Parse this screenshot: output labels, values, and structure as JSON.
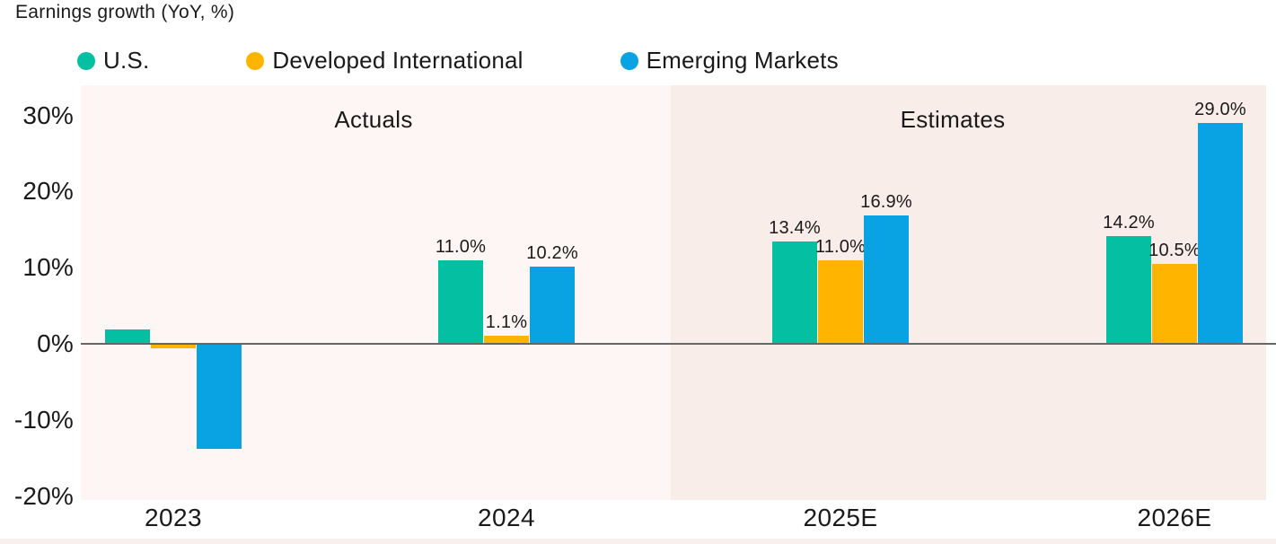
{
  "title": "Earnings growth (YoY, %)",
  "legend": {
    "items": [
      {
        "label": "U.S.",
        "color": "#05BFA2"
      },
      {
        "label": "Developed International",
        "color": "#FFB400"
      },
      {
        "label": "Emerging Markets",
        "color": "#09A2E3"
      }
    ]
  },
  "sections": [
    {
      "label": "Actuals",
      "bg": "#FDF6F4"
    },
    {
      "label": "Estimates",
      "bg": "#F9EDE9"
    }
  ],
  "chart_data": {
    "type": "bar",
    "title": "Earnings growth (YoY, %)",
    "categories": [
      "2023",
      "2024",
      "2025E",
      "2026E"
    ],
    "series": [
      {
        "name": "U.S.",
        "color": "#05BFA2",
        "values": [
          1.9,
          11.0,
          13.4,
          14.2
        ],
        "labels": [
          "",
          "11.0%",
          "13.4%",
          "14.2%"
        ]
      },
      {
        "name": "Developed International",
        "color": "#FFB400",
        "values": [
          -0.6,
          1.1,
          11.0,
          10.5
        ],
        "labels": [
          "",
          "1.1%",
          "11.0%",
          "10.5%"
        ]
      },
      {
        "name": "Emerging Markets",
        "color": "#09A2E3",
        "values": [
          -13.8,
          10.2,
          16.9,
          29.0
        ],
        "labels": [
          "",
          "10.2%",
          "16.9%",
          "29.0%"
        ]
      }
    ],
    "ytick_labels": [
      "30%",
      "20%",
      "10%",
      "0%",
      "-10%",
      "-20%"
    ],
    "yticks": [
      30,
      20,
      10,
      0,
      -10,
      -20
    ],
    "ylim": [
      -20.5,
      34
    ],
    "grid": false,
    "legend_position": "top",
    "annotations": [
      "Actuals",
      "Estimates"
    ],
    "zero_line_color": "#666666"
  }
}
